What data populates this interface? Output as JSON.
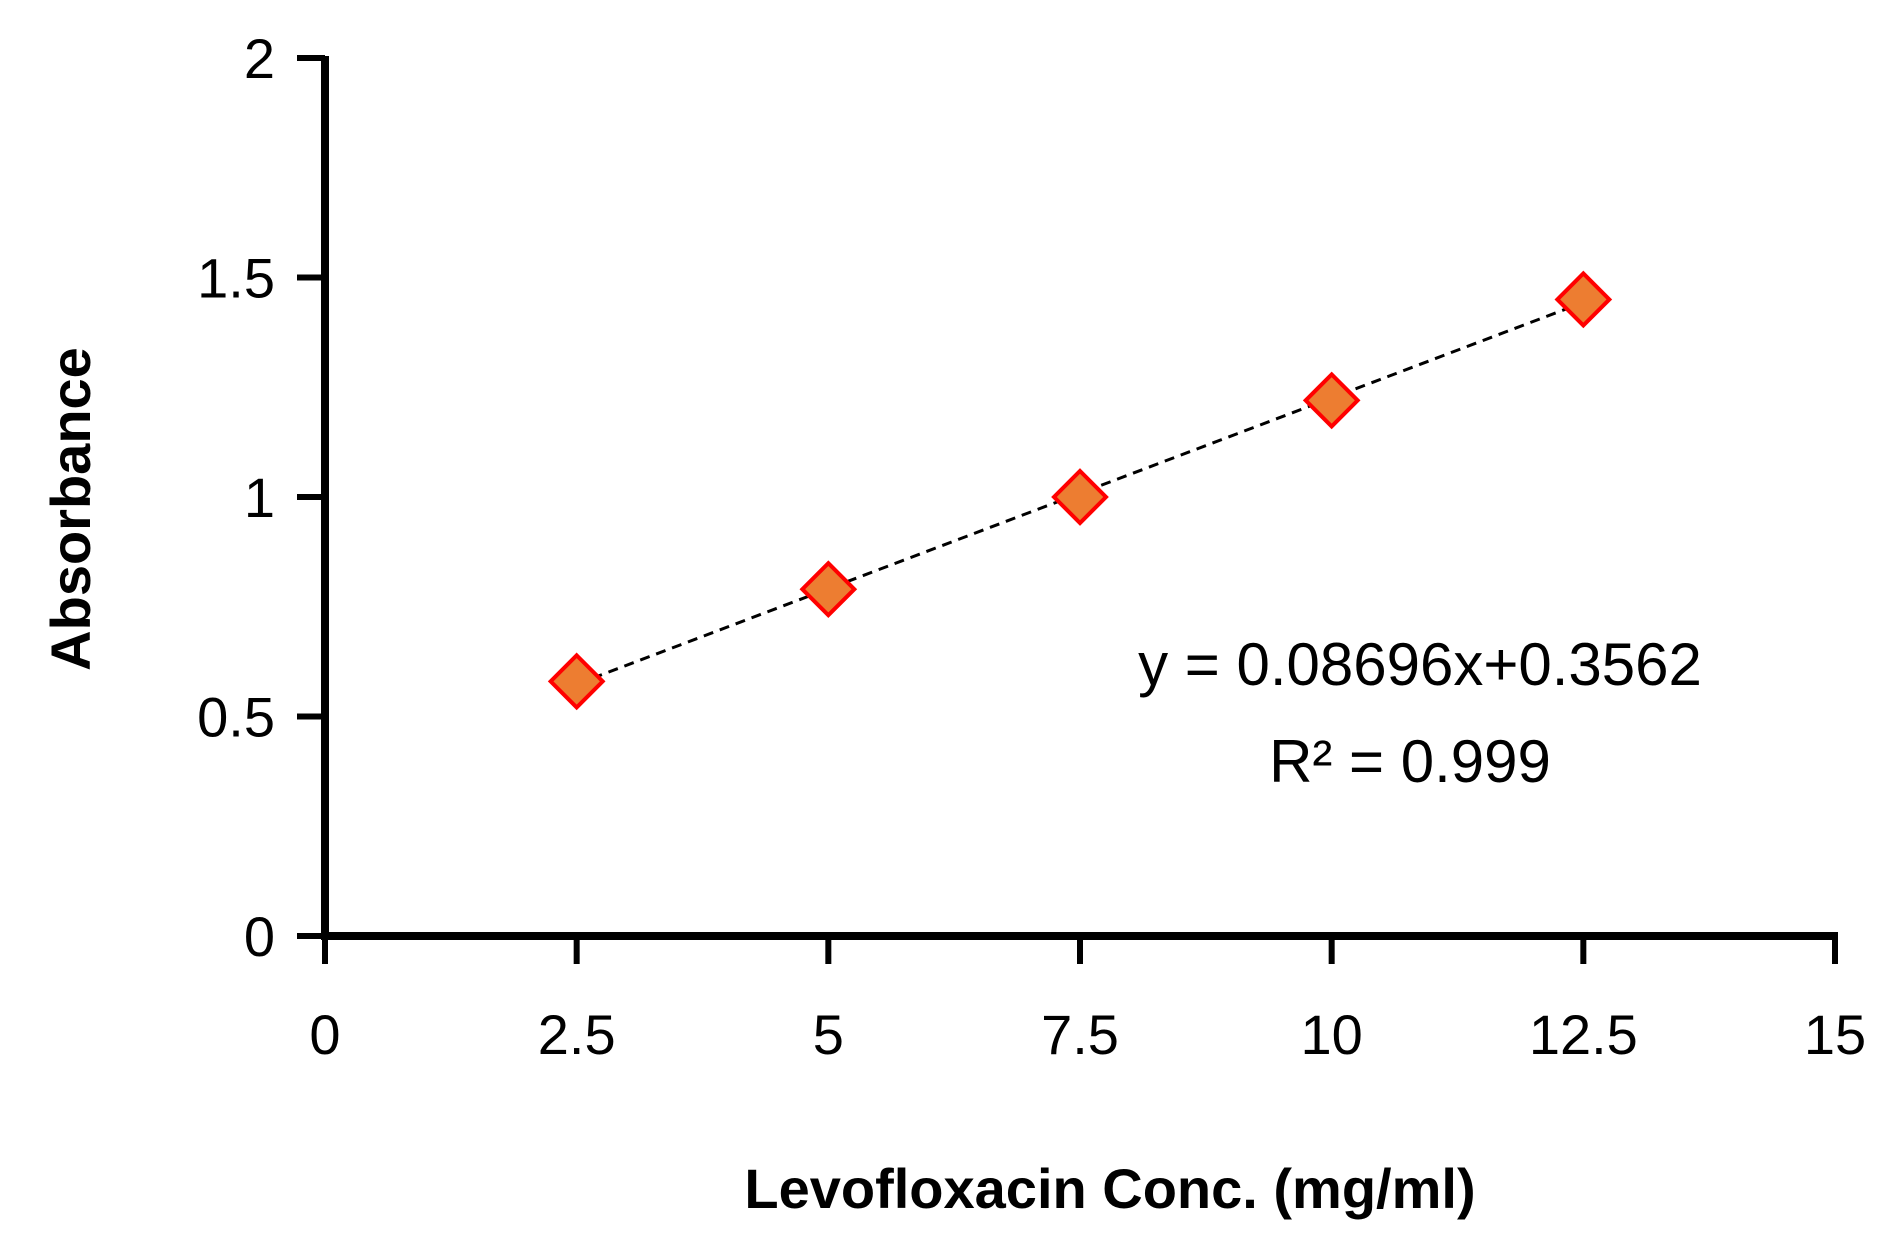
{
  "chart_data": {
    "type": "scatter",
    "xlabel": "Levofloxacin Conc. (mg/ml)",
    "ylabel": "Absorbance",
    "xlim": [
      0,
      15
    ],
    "ylim": [
      0,
      2
    ],
    "x_ticks": [
      "0",
      "2.5",
      "5",
      "7.5",
      "10",
      "12.5",
      "15"
    ],
    "y_ticks": [
      "0",
      "0.5",
      "1",
      "1.5",
      "2"
    ],
    "grid": false,
    "legend": "none",
    "series": [
      {
        "x": [
          2.5,
          5,
          7.5,
          10,
          12.5
        ],
        "y": [
          0.58,
          0.79,
          1.0,
          1.22,
          1.45
        ],
        "marker": "diamond",
        "fill_color": "#ED7D31",
        "edge_color": "#FF0000"
      }
    ],
    "trendline": {
      "type": "linear",
      "slope": 0.08696,
      "intercept": 0.3562,
      "x_range": [
        2.5,
        12.5
      ],
      "style": "dashed",
      "color": "#000000"
    },
    "annotations": {
      "equation": "y = 0.08696x+0.3562",
      "r_squared": "R² = 0.999"
    }
  }
}
